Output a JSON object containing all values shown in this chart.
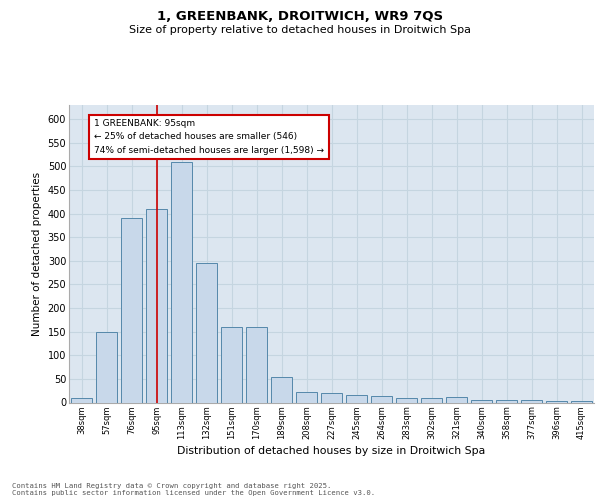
{
  "title1": "1, GREENBANK, DROITWICH, WR9 7QS",
  "title2": "Size of property relative to detached houses in Droitwich Spa",
  "xlabel": "Distribution of detached houses by size in Droitwich Spa",
  "ylabel": "Number of detached properties",
  "categories": [
    "38sqm",
    "57sqm",
    "76sqm",
    "95sqm",
    "113sqm",
    "132sqm",
    "151sqm",
    "170sqm",
    "189sqm",
    "208sqm",
    "227sqm",
    "245sqm",
    "264sqm",
    "283sqm",
    "302sqm",
    "321sqm",
    "340sqm",
    "358sqm",
    "377sqm",
    "396sqm",
    "415sqm"
  ],
  "values": [
    10,
    150,
    390,
    410,
    510,
    295,
    160,
    160,
    55,
    22,
    20,
    16,
    13,
    9,
    9,
    11,
    5,
    5,
    6,
    4,
    4
  ],
  "bar_color": "#c8d8ea",
  "bar_edge_color": "#5588aa",
  "red_line_index": 3,
  "annotation_line1": "1 GREENBANK: 95sqm",
  "annotation_line2": "← 25% of detached houses are smaller (546)",
  "annotation_line3": "74% of semi-detached houses are larger (1,598) →",
  "annotation_box_facecolor": "#ffffff",
  "annotation_box_edgecolor": "#cc0000",
  "red_line_color": "#cc0000",
  "grid_color": "#c5d5e0",
  "background_color": "#dce6f0",
  "ylim": [
    0,
    630
  ],
  "yticks": [
    0,
    50,
    100,
    150,
    200,
    250,
    300,
    350,
    400,
    450,
    500,
    550,
    600
  ],
  "footer1": "Contains HM Land Registry data © Crown copyright and database right 2025.",
  "footer2": "Contains public sector information licensed under the Open Government Licence v3.0."
}
